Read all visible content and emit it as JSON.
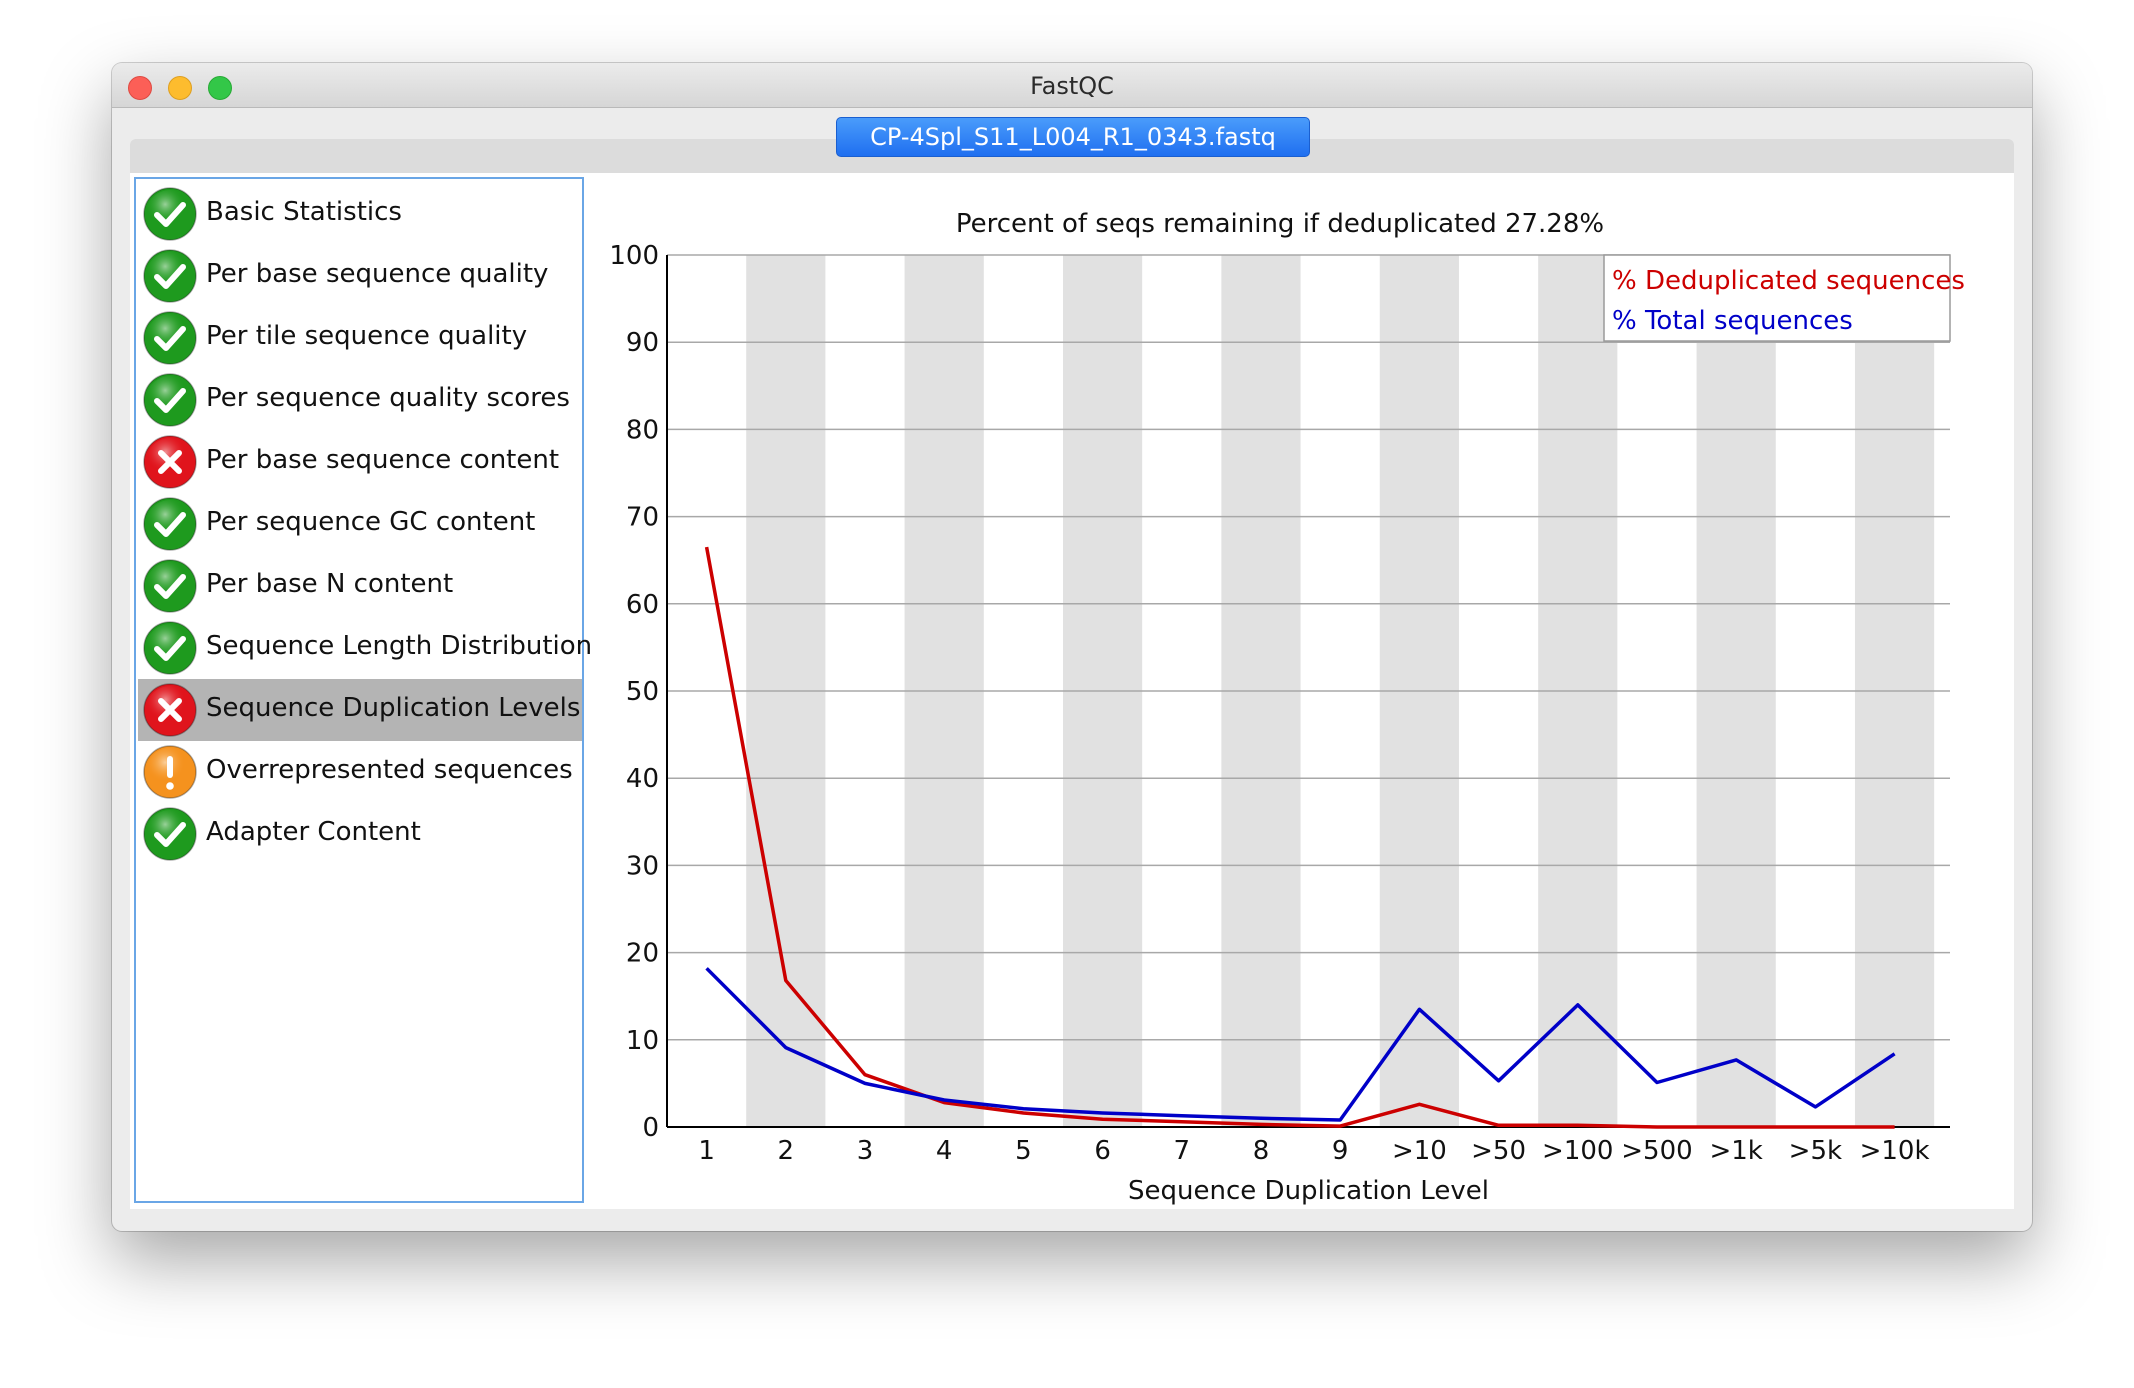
{
  "window": {
    "title": "FastQC"
  },
  "file_tab": {
    "label": "CP-4Spl_S11_L004_R1_0343.fastq"
  },
  "modules": [
    {
      "label": "Basic Statistics",
      "status": "pass"
    },
    {
      "label": "Per base sequence quality",
      "status": "pass"
    },
    {
      "label": "Per tile sequence quality",
      "status": "pass"
    },
    {
      "label": "Per sequence quality scores",
      "status": "pass"
    },
    {
      "label": "Per base sequence content",
      "status": "fail"
    },
    {
      "label": "Per sequence GC content",
      "status": "pass"
    },
    {
      "label": "Per base N content",
      "status": "pass"
    },
    {
      "label": "Sequence Length Distribution",
      "status": "pass"
    },
    {
      "label": "Sequence Duplication Levels",
      "status": "fail",
      "selected": true
    },
    {
      "label": "Overrepresented sequences",
      "status": "warn"
    },
    {
      "label": "Adapter Content",
      "status": "pass"
    }
  ],
  "status_colors": {
    "pass": "#1e9a1e",
    "fail": "#e0141c",
    "warn": "#f5921e"
  },
  "chart_data": {
    "type": "line",
    "title": "Percent of seqs remaining if deduplicated 27.28%",
    "xlabel": "Sequence Duplication Level",
    "ylabel": "",
    "ylim": [
      0,
      100
    ],
    "yticks": [
      0,
      10,
      20,
      30,
      40,
      50,
      60,
      70,
      80,
      90,
      100
    ],
    "categories": [
      "1",
      "2",
      "3",
      "4",
      "5",
      "6",
      "7",
      "8",
      "9",
      ">10",
      ">50",
      ">100",
      ">500",
      ">1k",
      ">5k",
      ">10k"
    ],
    "series": [
      {
        "name": "% Deduplicated sequences",
        "color": "#cc0000",
        "values": [
          66.5,
          16.8,
          6.0,
          2.8,
          1.6,
          0.9,
          0.6,
          0.3,
          0.1,
          2.6,
          0.2,
          0.2,
          0.0,
          0.0,
          0.0,
          0.0
        ]
      },
      {
        "name": "% Total sequences",
        "color": "#0000c8",
        "values": [
          18.2,
          9.1,
          5.0,
          3.1,
          2.1,
          1.6,
          1.3,
          1.0,
          0.8,
          13.5,
          5.3,
          14.0,
          5.1,
          7.7,
          2.3,
          8.4
        ]
      }
    ],
    "legend_position": "top-right",
    "grid": true,
    "stripe_colors": [
      "#ffffff",
      "#e1e1e1"
    ]
  }
}
